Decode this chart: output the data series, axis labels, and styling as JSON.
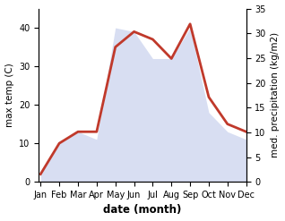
{
  "months": [
    "Jan",
    "Feb",
    "Mar",
    "Apr",
    "May",
    "Jun",
    "Jul",
    "Aug",
    "Sep",
    "Oct",
    "Nov",
    "Dec"
  ],
  "month_indices": [
    0,
    1,
    2,
    3,
    4,
    5,
    6,
    7,
    8,
    9,
    10,
    11
  ],
  "temperature": [
    2,
    10,
    13,
    13,
    35,
    39,
    37,
    32,
    41,
    22,
    15,
    13
  ],
  "precipitation_left_scaled": [
    2,
    10,
    13,
    11,
    40,
    39,
    32,
    32,
    40,
    18,
    13,
    11
  ],
  "precipitation_right": [
    1.5,
    7.5,
    10,
    8.5,
    31,
    30,
    25,
    25,
    31,
    14,
    10,
    8.5
  ],
  "temp_color": "#c0392b",
  "precip_fill_color": "#b8c4e8",
  "precip_fill_alpha": 0.55,
  "temp_linewidth": 2.0,
  "ylabel_left": "max temp (C)",
  "ylabel_right": "med. precipitation (kg/m2)",
  "xlabel": "date (month)",
  "ylim_left": [
    0,
    45
  ],
  "ylim_right": [
    0,
    35
  ],
  "yticks_left": [
    0,
    10,
    20,
    30,
    40
  ],
  "yticks_right": [
    0,
    5,
    10,
    15,
    20,
    25,
    30,
    35
  ],
  "label_fontsize": 7.5,
  "tick_fontsize": 7.0,
  "xlabel_fontsize": 8.5
}
